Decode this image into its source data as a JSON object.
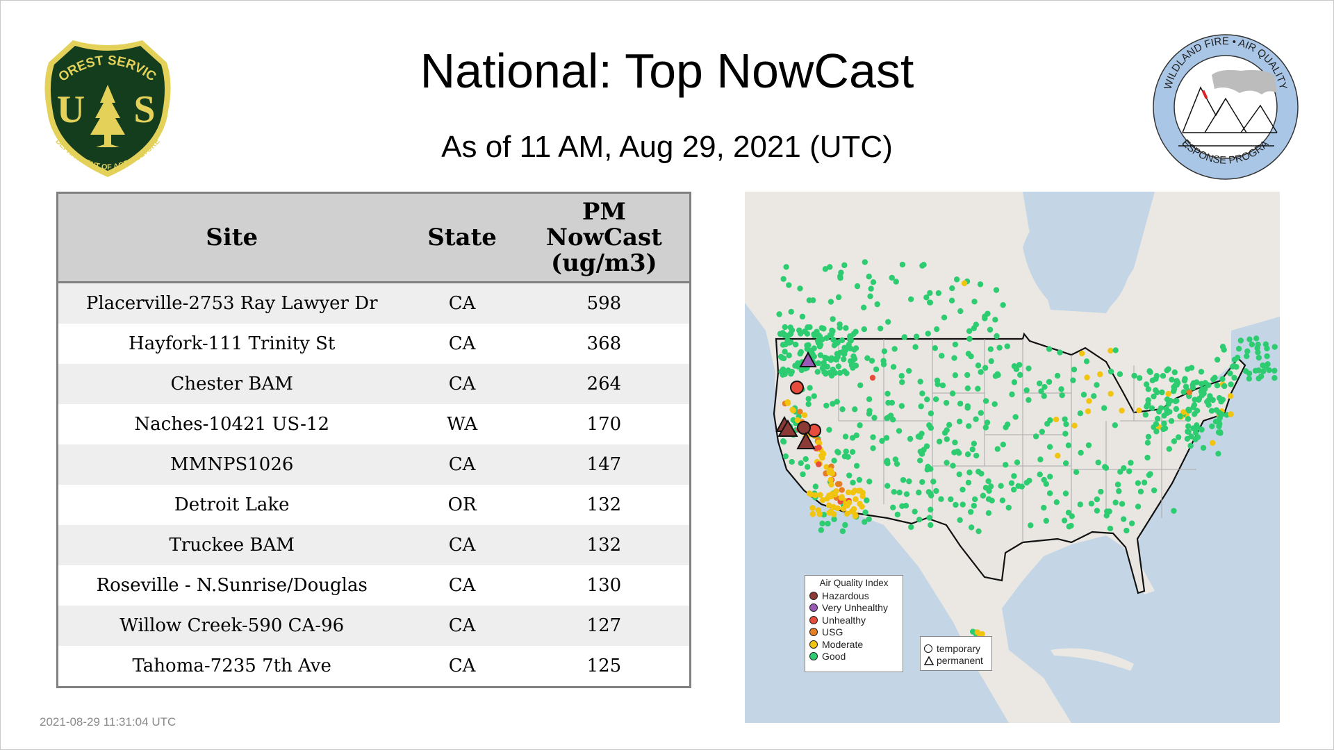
{
  "header": {
    "title": "National: Top NowCast",
    "subtitle": "As of 11 AM, Aug 29, 2021 (UTC)"
  },
  "logos": {
    "left": {
      "top_text": "FOREST SERVICE",
      "letters_left": "U",
      "letters_right": "S",
      "bottom_text": "DEPARTMENT OF AGRICULTURE"
    },
    "right": {
      "top_text": "WILDLAND FIRE • AIR QUALITY",
      "bottom_text": "RESPONSE PROGRAM"
    }
  },
  "table": {
    "headers": {
      "site": "Site",
      "state": "State",
      "pm_line1": "PM",
      "pm_line2": "NowCast",
      "pm_line3": "(ug/m3)"
    },
    "rows": [
      {
        "site": "Placerville-2753 Ray Lawyer Dr",
        "state": "CA",
        "value": "598"
      },
      {
        "site": "Hayfork-111 Trinity St",
        "state": "CA",
        "value": "368"
      },
      {
        "site": "Chester BAM",
        "state": "CA",
        "value": "264"
      },
      {
        "site": "Naches-10421 US-12",
        "state": "WA",
        "value": "170"
      },
      {
        "site": "MMNPS1026",
        "state": "CA",
        "value": "147"
      },
      {
        "site": "Detroit Lake",
        "state": "OR",
        "value": "132"
      },
      {
        "site": "Truckee BAM",
        "state": "CA",
        "value": "132"
      },
      {
        "site": "Roseville - N.Sunrise/Douglas",
        "state": "CA",
        "value": "130"
      },
      {
        "site": "Willow Creek-590 CA-96",
        "state": "CA",
        "value": "127"
      },
      {
        "site": "Tahoma-7235 7th Ave",
        "state": "CA",
        "value": "125"
      }
    ]
  },
  "map": {
    "colors": {
      "water": "#c4d6e6",
      "land": "#ebe8e3",
      "border": "#111111",
      "state_lines": "#a8a8a8"
    },
    "aqi_legend": {
      "title": "Air Quality Index",
      "items": [
        {
          "label": "Hazardous",
          "color": "#8b3a36"
        },
        {
          "label": "Very Unhealthy",
          "color": "#9b59b6"
        },
        {
          "label": "Unhealthy",
          "color": "#e74c3c"
        },
        {
          "label": "USG",
          "color": "#e67e22"
        },
        {
          "label": "Moderate",
          "color": "#f1c40f"
        },
        {
          "label": "Good",
          "color": "#2ecc71"
        }
      ]
    },
    "type_legend": {
      "temporary": "temporary",
      "permanent": "permanent"
    }
  },
  "footer": {
    "timestamp": "2021-08-29 11:31:04 UTC"
  }
}
